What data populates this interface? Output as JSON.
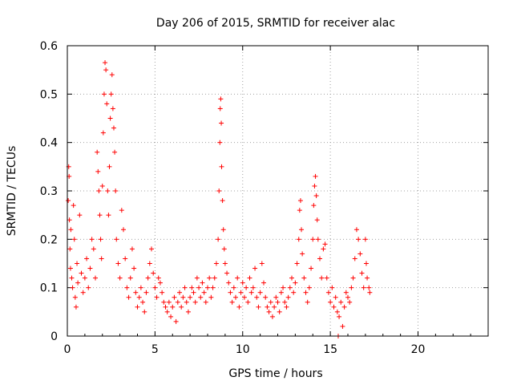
{
  "chart_data": {
    "type": "scatter",
    "title": "Day 206 of 2015, SRMTID for receiver alac",
    "xlabel": "GPS time / hours",
    "ylabel": "SRMTID / TECUs",
    "xlim": [
      0,
      24
    ],
    "ylim": [
      0,
      0.6
    ],
    "xticks": [
      0,
      5,
      10,
      15,
      20
    ],
    "yticks": [
      0,
      0.1,
      0.2,
      0.3,
      0.4,
      0.5,
      0.6
    ],
    "grid": true,
    "marker": "+",
    "marker_color": "#ff0000",
    "series": [
      {
        "name": "SRMTID",
        "points": [
          [
            0.05,
            0.28
          ],
          [
            0.08,
            0.35
          ],
          [
            0.1,
            0.33
          ],
          [
            0.12,
            0.24
          ],
          [
            0.15,
            0.18
          ],
          [
            0.18,
            0.14
          ],
          [
            0.2,
            0.22
          ],
          [
            0.25,
            0.12
          ],
          [
            0.3,
            0.1
          ],
          [
            0.35,
            0.27
          ],
          [
            0.4,
            0.2
          ],
          [
            0.45,
            0.08
          ],
          [
            0.5,
            0.06
          ],
          [
            0.55,
            0.15
          ],
          [
            0.6,
            0.11
          ],
          [
            0.7,
            0.25
          ],
          [
            0.8,
            0.13
          ],
          [
            0.9,
            0.09
          ],
          [
            1.0,
            0.12
          ],
          [
            1.1,
            0.16
          ],
          [
            1.2,
            0.1
          ],
          [
            1.3,
            0.14
          ],
          [
            1.4,
            0.2
          ],
          [
            1.5,
            0.18
          ],
          [
            1.6,
            0.12
          ],
          [
            1.7,
            0.38
          ],
          [
            1.75,
            0.34
          ],
          [
            1.8,
            0.3
          ],
          [
            1.85,
            0.25
          ],
          [
            1.9,
            0.2
          ],
          [
            1.95,
            0.16
          ],
          [
            2.0,
            0.31
          ],
          [
            2.05,
            0.42
          ],
          [
            2.1,
            0.5
          ],
          [
            2.15,
            0.565
          ],
          [
            2.2,
            0.55
          ],
          [
            2.25,
            0.48
          ],
          [
            2.3,
            0.3
          ],
          [
            2.35,
            0.25
          ],
          [
            2.4,
            0.35
          ],
          [
            2.45,
            0.45
          ],
          [
            2.5,
            0.5
          ],
          [
            2.55,
            0.54
          ],
          [
            2.6,
            0.47
          ],
          [
            2.65,
            0.43
          ],
          [
            2.7,
            0.38
          ],
          [
            2.75,
            0.3
          ],
          [
            2.8,
            0.2
          ],
          [
            2.9,
            0.15
          ],
          [
            3.0,
            0.12
          ],
          [
            3.1,
            0.26
          ],
          [
            3.2,
            0.22
          ],
          [
            3.3,
            0.16
          ],
          [
            3.4,
            0.1
          ],
          [
            3.5,
            0.08
          ],
          [
            3.6,
            0.12
          ],
          [
            3.7,
            0.18
          ],
          [
            3.8,
            0.14
          ],
          [
            3.9,
            0.09
          ],
          [
            4.0,
            0.06
          ],
          [
            4.1,
            0.08
          ],
          [
            4.2,
            0.1
          ],
          [
            4.3,
            0.07
          ],
          [
            4.4,
            0.05
          ],
          [
            4.5,
            0.09
          ],
          [
            4.6,
            0.12
          ],
          [
            4.7,
            0.15
          ],
          [
            4.8,
            0.18
          ],
          [
            4.9,
            0.13
          ],
          [
            5.0,
            0.1
          ],
          [
            5.1,
            0.08
          ],
          [
            5.2,
            0.12
          ],
          [
            5.3,
            0.11
          ],
          [
            5.4,
            0.09
          ],
          [
            5.5,
            0.07
          ],
          [
            5.6,
            0.06
          ],
          [
            5.7,
            0.05
          ],
          [
            5.8,
            0.07
          ],
          [
            5.9,
            0.04
          ],
          [
            6.0,
            0.06
          ],
          [
            6.1,
            0.08
          ],
          [
            6.2,
            0.03
          ],
          [
            6.3,
            0.07
          ],
          [
            6.4,
            0.09
          ],
          [
            6.5,
            0.06
          ],
          [
            6.6,
            0.08
          ],
          [
            6.7,
            0.1
          ],
          [
            6.8,
            0.07
          ],
          [
            6.9,
            0.05
          ],
          [
            7.0,
            0.08
          ],
          [
            7.1,
            0.1
          ],
          [
            7.2,
            0.09
          ],
          [
            7.3,
            0.07
          ],
          [
            7.4,
            0.12
          ],
          [
            7.5,
            0.1
          ],
          [
            7.6,
            0.08
          ],
          [
            7.7,
            0.11
          ],
          [
            7.8,
            0.09
          ],
          [
            7.9,
            0.07
          ],
          [
            8.0,
            0.1
          ],
          [
            8.1,
            0.12
          ],
          [
            8.2,
            0.08
          ],
          [
            8.3,
            0.1
          ],
          [
            8.4,
            0.12
          ],
          [
            8.5,
            0.15
          ],
          [
            8.6,
            0.2
          ],
          [
            8.65,
            0.3
          ],
          [
            8.7,
            0.4
          ],
          [
            8.72,
            0.47
          ],
          [
            8.75,
            0.49
          ],
          [
            8.78,
            0.44
          ],
          [
            8.8,
            0.35
          ],
          [
            8.85,
            0.28
          ],
          [
            8.9,
            0.22
          ],
          [
            8.95,
            0.18
          ],
          [
            9.0,
            0.15
          ],
          [
            9.1,
            0.13
          ],
          [
            9.2,
            0.11
          ],
          [
            9.3,
            0.09
          ],
          [
            9.4,
            0.07
          ],
          [
            9.5,
            0.1
          ],
          [
            9.6,
            0.08
          ],
          [
            9.7,
            0.12
          ],
          [
            9.8,
            0.06
          ],
          [
            9.9,
            0.09
          ],
          [
            10.0,
            0.11
          ],
          [
            10.1,
            0.08
          ],
          [
            10.2,
            0.1
          ],
          [
            10.3,
            0.07
          ],
          [
            10.4,
            0.12
          ],
          [
            10.5,
            0.09
          ],
          [
            10.6,
            0.1
          ],
          [
            10.7,
            0.14
          ],
          [
            10.8,
            0.08
          ],
          [
            10.9,
            0.06
          ],
          [
            11.0,
            0.09
          ],
          [
            11.1,
            0.15
          ],
          [
            11.2,
            0.11
          ],
          [
            11.3,
            0.08
          ],
          [
            11.4,
            0.06
          ],
          [
            11.5,
            0.05
          ],
          [
            11.6,
            0.07
          ],
          [
            11.7,
            0.04
          ],
          [
            11.8,
            0.06
          ],
          [
            11.9,
            0.08
          ],
          [
            12.0,
            0.07
          ],
          [
            12.1,
            0.05
          ],
          [
            12.2,
            0.09
          ],
          [
            12.3,
            0.1
          ],
          [
            12.4,
            0.07
          ],
          [
            12.5,
            0.06
          ],
          [
            12.6,
            0.08
          ],
          [
            12.7,
            0.1
          ],
          [
            12.8,
            0.12
          ],
          [
            12.9,
            0.09
          ],
          [
            13.0,
            0.11
          ],
          [
            13.1,
            0.15
          ],
          [
            13.2,
            0.2
          ],
          [
            13.25,
            0.26
          ],
          [
            13.3,
            0.28
          ],
          [
            13.35,
            0.22
          ],
          [
            13.4,
            0.17
          ],
          [
            13.5,
            0.12
          ],
          [
            13.6,
            0.09
          ],
          [
            13.7,
            0.07
          ],
          [
            13.8,
            0.1
          ],
          [
            13.9,
            0.14
          ],
          [
            14.0,
            0.2
          ],
          [
            14.05,
            0.27
          ],
          [
            14.1,
            0.31
          ],
          [
            14.15,
            0.33
          ],
          [
            14.2,
            0.29
          ],
          [
            14.25,
            0.24
          ],
          [
            14.3,
            0.2
          ],
          [
            14.4,
            0.16
          ],
          [
            14.5,
            0.12
          ],
          [
            14.6,
            0.18
          ],
          [
            14.7,
            0.19
          ],
          [
            14.8,
            0.12
          ],
          [
            14.9,
            0.09
          ],
          [
            15.0,
            0.07
          ],
          [
            15.1,
            0.1
          ],
          [
            15.2,
            0.06
          ],
          [
            15.3,
            0.08
          ],
          [
            15.4,
            0.05
          ],
          [
            15.45,
            0.0
          ],
          [
            15.5,
            0.04
          ],
          [
            15.6,
            0.07
          ],
          [
            15.7,
            0.02
          ],
          [
            15.8,
            0.06
          ],
          [
            15.9,
            0.09
          ],
          [
            16.0,
            0.08
          ],
          [
            16.1,
            0.07
          ],
          [
            16.2,
            0.1
          ],
          [
            16.3,
            0.12
          ],
          [
            16.4,
            0.16
          ],
          [
            16.5,
            0.22
          ],
          [
            16.6,
            0.2
          ],
          [
            16.7,
            0.17
          ],
          [
            16.8,
            0.13
          ],
          [
            16.9,
            0.1
          ],
          [
            17.0,
            0.2
          ],
          [
            17.05,
            0.15
          ],
          [
            17.1,
            0.12
          ],
          [
            17.2,
            0.1
          ],
          [
            17.25,
            0.09
          ]
        ]
      }
    ]
  }
}
